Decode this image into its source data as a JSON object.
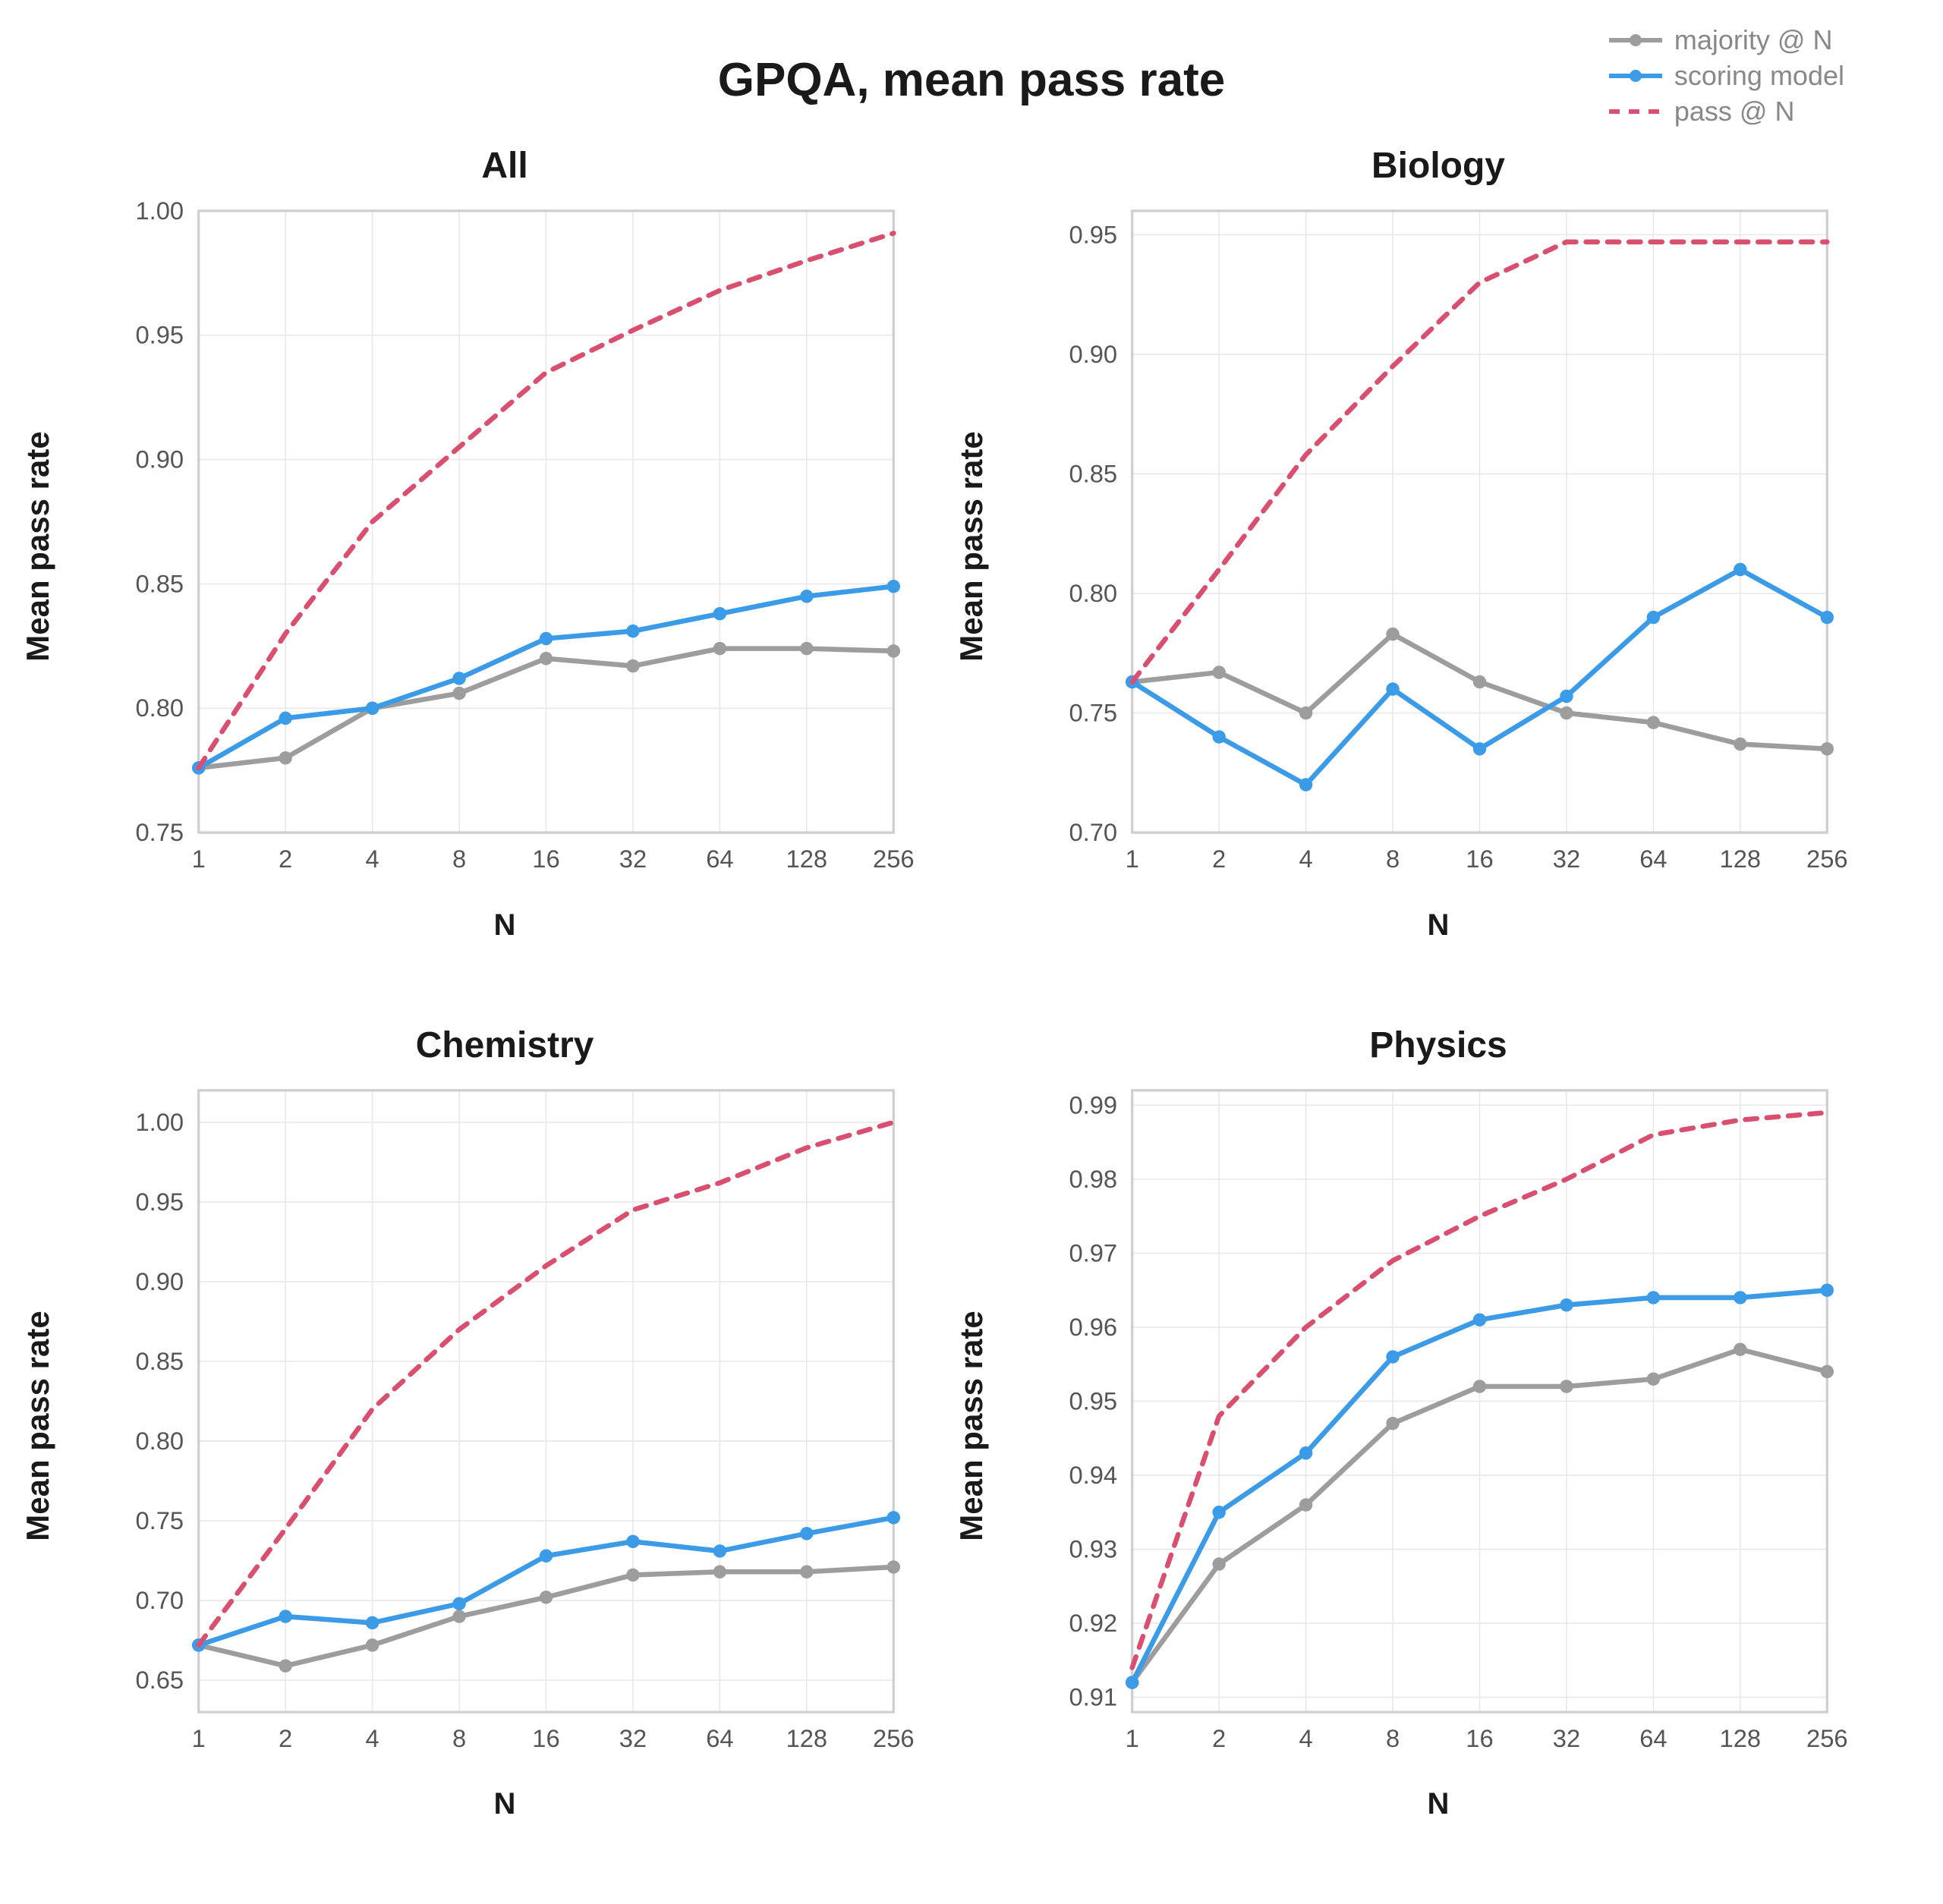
{
  "title": "GPQA, mean pass rate",
  "legend": [
    {
      "label": "majority @ N",
      "color": "#9d9d9d",
      "style": "solid",
      "marker": "circle"
    },
    {
      "label": "scoring model",
      "color": "#3b9be6",
      "style": "solid",
      "marker": "circle"
    },
    {
      "label": "pass @ N",
      "color": "#d94f70",
      "style": "dashed",
      "marker": "none"
    }
  ],
  "xlabel": "N",
  "ylabel": "Mean pass rate",
  "x_ticks": [
    1,
    2,
    4,
    8,
    16,
    32,
    64,
    128,
    256
  ],
  "background_color": "#ffffff",
  "grid_color": "#e8e8e8",
  "border_color": "#cfcfcf",
  "tick_fontsize": 30,
  "title_fontsize": 62,
  "panel_title_fontsize": 48,
  "axis_label_fontsize": 42,
  "line_width": 6,
  "marker_radius": 8,
  "dash_pattern": "14 12",
  "panels": [
    {
      "title": "All",
      "ylim": [
        0.75,
        1.0
      ],
      "y_ticks": [
        0.75,
        0.8,
        0.85,
        0.9,
        0.95,
        1.0
      ],
      "series": {
        "majority": [
          0.776,
          0.78,
          0.8,
          0.806,
          0.82,
          0.817,
          0.824,
          0.824,
          0.823
        ],
        "scoring": [
          0.776,
          0.796,
          0.8,
          0.812,
          0.828,
          0.831,
          0.838,
          0.845,
          0.849
        ],
        "pass": [
          0.776,
          0.83,
          0.875,
          0.905,
          0.935,
          0.952,
          0.968,
          0.98,
          0.991
        ]
      }
    },
    {
      "title": "Biology",
      "ylim": [
        0.7,
        0.96
      ],
      "y_ticks": [
        0.7,
        0.75,
        0.8,
        0.85,
        0.9,
        0.95
      ],
      "series": {
        "majority": [
          0.763,
          0.767,
          0.75,
          0.783,
          0.763,
          0.75,
          0.746,
          0.737,
          0.735
        ],
        "scoring": [
          0.763,
          0.74,
          0.72,
          0.76,
          0.735,
          0.757,
          0.79,
          0.81,
          0.79
        ],
        "pass": [
          0.763,
          0.81,
          0.858,
          0.895,
          0.93,
          0.947,
          0.947,
          0.947,
          0.947
        ]
      }
    },
    {
      "title": "Chemistry",
      "ylim": [
        0.63,
        1.02
      ],
      "y_ticks": [
        0.65,
        0.7,
        0.75,
        0.8,
        0.85,
        0.9,
        0.95,
        1.0
      ],
      "series": {
        "majority": [
          0.672,
          0.659,
          0.672,
          0.69,
          0.702,
          0.716,
          0.718,
          0.718,
          0.721
        ],
        "scoring": [
          0.672,
          0.69,
          0.686,
          0.698,
          0.728,
          0.737,
          0.731,
          0.742,
          0.752
        ],
        "pass": [
          0.672,
          0.745,
          0.82,
          0.87,
          0.91,
          0.945,
          0.962,
          0.984,
          1.0
        ]
      }
    },
    {
      "title": "Physics",
      "ylim": [
        0.908,
        0.992
      ],
      "y_ticks": [
        0.91,
        0.92,
        0.93,
        0.94,
        0.95,
        0.96,
        0.97,
        0.98,
        0.99
      ],
      "series": {
        "majority": [
          0.912,
          0.928,
          0.936,
          0.947,
          0.952,
          0.952,
          0.953,
          0.957,
          0.954
        ],
        "scoring": [
          0.912,
          0.935,
          0.943,
          0.956,
          0.961,
          0.963,
          0.964,
          0.964,
          0.965
        ],
        "pass": [
          0.914,
          0.948,
          0.96,
          0.969,
          0.975,
          0.98,
          0.986,
          0.988,
          0.989
        ]
      }
    }
  ]
}
